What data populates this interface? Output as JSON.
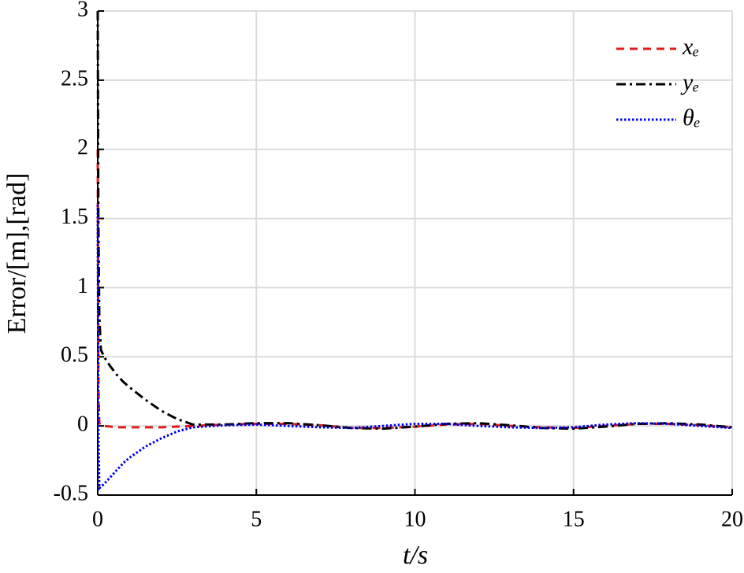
{
  "chart_data": {
    "type": "line",
    "xlabel": "t/s",
    "ylabel": "Error/[m],[rad]",
    "x": [
      0,
      0.02,
      0.05,
      0.1,
      0.2,
      0.4,
      0.6,
      0.8,
      1,
      1.5,
      2,
      2.5,
      3,
      4,
      5,
      6,
      7,
      8,
      9,
      10,
      11,
      12,
      13,
      14,
      15,
      16,
      17,
      18,
      19,
      20
    ],
    "series": [
      {
        "name": "xₑ",
        "color": "#e31a1c",
        "dash": "10 7",
        "values": [
          2,
          0.3,
          0.02,
          0,
          0,
          -0.005,
          -0.01,
          -0.01,
          -0.01,
          -0.01,
          -0.01,
          -0.005,
          0,
          0.01,
          0.015,
          0.015,
          0.005,
          -0.015,
          -0.015,
          -0.005,
          0.01,
          0.015,
          0,
          -0.01,
          -0.015,
          0,
          0.015,
          0.015,
          0.005,
          -0.01
        ]
      },
      {
        "name": "yₑ",
        "color": "#000000",
        "dash": "12 5 3 5",
        "values": [
          3,
          1.5,
          0.8,
          0.55,
          0.5,
          0.43,
          0.37,
          0.32,
          0.28,
          0.19,
          0.11,
          0.05,
          0.01,
          0.01,
          0.02,
          0.02,
          0.005,
          -0.015,
          -0.02,
          -0.005,
          0.015,
          0.02,
          0.005,
          -0.015,
          -0.02,
          -0.005,
          0.015,
          0.02,
          0.01,
          -0.01
        ]
      },
      {
        "name": "θₑ",
        "color": "#0000ee",
        "dash": "2.5 2.5",
        "values": [
          1.6,
          0,
          -0.45,
          -0.44,
          -0.42,
          -0.37,
          -0.32,
          -0.27,
          -0.23,
          -0.15,
          -0.09,
          -0.04,
          -0.01,
          0.005,
          0.01,
          0,
          -0.01,
          -0.015,
          0,
          0.015,
          0.015,
          0,
          -0.01,
          -0.015,
          -0.01,
          0.01,
          0.02,
          0.015,
          0,
          -0.015
        ]
      }
    ],
    "xlim": [
      0,
      20
    ],
    "xticks": [
      0,
      5,
      10,
      15,
      20
    ],
    "ylim": [
      -0.5,
      3
    ],
    "yticks": [
      -0.5,
      0,
      0.5,
      1,
      1.5,
      2,
      2.5,
      3
    ],
    "grid": true,
    "legend": "upper right"
  }
}
